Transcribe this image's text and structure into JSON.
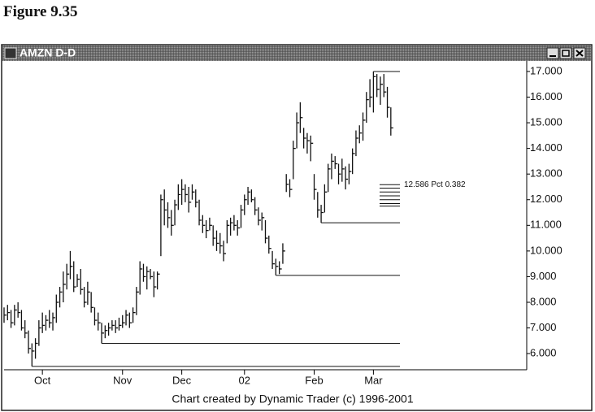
{
  "figure_caption": "Figure 9.35",
  "chart_data": {
    "type": "ohlc",
    "title": "AMZN D-D",
    "footer": "Chart created by Dynamic Trader (c) 1996-2001",
    "color": "#111111",
    "xlim": [
      0,
      150
    ],
    "xticks": [
      {
        "value": 11,
        "label": "Oct"
      },
      {
        "value": 34,
        "label": "Nov"
      },
      {
        "value": 51,
        "label": "Dec"
      },
      {
        "value": 69,
        "label": "02"
      },
      {
        "value": 89,
        "label": "Feb"
      },
      {
        "value": 106,
        "label": "Mar"
      }
    ],
    "ylim": [
      5.37,
      17.41
    ],
    "yticks": [
      {
        "value": 6,
        "label": "6.000"
      },
      {
        "value": 7,
        "label": "7.000"
      },
      {
        "value": 8,
        "label": "8.000"
      },
      {
        "value": 9,
        "label": "9.000"
      },
      {
        "value": 10,
        "label": "10.000"
      },
      {
        "value": 11,
        "label": "11.000"
      },
      {
        "value": 12,
        "label": "12.000"
      },
      {
        "value": 13,
        "label": "13.000"
      },
      {
        "value": 14,
        "label": "14.000"
      },
      {
        "value": 15,
        "label": "15.000"
      },
      {
        "value": 16,
        "label": "16.000"
      },
      {
        "value": 17,
        "label": "17.000"
      }
    ],
    "low": [
      7.2,
      7.3,
      7.0,
      7.1,
      7.4,
      6.9,
      6.6,
      6.0,
      5.5,
      5.8,
      6.3,
      6.8,
      6.9,
      7.0,
      6.9,
      7.2,
      7.8,
      8.0,
      8.5,
      8.9,
      8.4,
      8.6,
      8.3,
      7.8,
      7.9,
      7.6,
      7.1,
      6.9,
      6.4,
      6.6,
      6.7,
      6.9,
      6.8,
      6.9,
      7.0,
      7.1,
      7.0,
      7.2,
      7.5,
      8.3,
      8.8,
      8.5,
      8.9,
      8.2,
      8.5,
      9.8,
      11.0,
      10.9,
      10.6,
      11.0,
      11.6,
      11.8,
      11.9,
      11.5,
      12.0,
      11.7,
      11.0,
      10.7,
      10.5,
      10.8,
      10.2,
      10.0,
      9.9,
      9.6,
      10.3,
      10.6,
      10.8,
      10.6,
      10.9,
      11.4,
      11.8,
      11.9,
      11.4,
      11.0,
      10.8,
      10.3,
      9.9,
      9.3,
      9.05,
      9.1,
      9.5,
      12.3,
      12.1,
      12.8,
      14.0,
      14.6,
      14.0,
      13.8,
      13.5,
      12.0,
      11.3,
      11.1,
      11.5,
      12.3,
      12.8,
      13.2,
      12.6,
      12.7,
      12.4,
      12.6,
      13.0,
      13.7,
      14.2,
      14.3,
      15.0,
      15.6,
      15.4,
      16.0,
      15.7,
      16.0,
      15.2,
      14.5
    ],
    "high": [
      7.8,
      7.9,
      7.7,
      7.9,
      8.0,
      7.7,
      7.3,
      6.9,
      6.4,
      6.6,
      7.3,
      7.6,
      7.5,
      7.7,
      7.6,
      8.3,
      8.6,
      9.2,
      9.5,
      10.0,
      9.6,
      9.1,
      9.3,
      8.6,
      8.8,
      8.4,
      7.8,
      7.6,
      7.2,
      7.1,
      7.2,
      7.3,
      7.3,
      7.4,
      7.5,
      7.7,
      7.6,
      7.8,
      8.6,
      9.6,
      9.5,
      9.4,
      9.3,
      9.2,
      9.2,
      12.2,
      12.4,
      11.9,
      11.6,
      12.0,
      12.6,
      12.8,
      12.6,
      12.5,
      12.6,
      12.4,
      12.0,
      11.4,
      11.2,
      11.3,
      11.0,
      10.8,
      10.7,
      10.4,
      11.2,
      11.3,
      11.4,
      11.2,
      11.8,
      12.2,
      12.5,
      12.4,
      12.1,
      11.7,
      11.5,
      11.2,
      10.6,
      10.0,
      9.7,
      9.6,
      10.3,
      13.0,
      12.8,
      14.3,
      15.4,
      15.8,
      14.8,
      14.6,
      14.5,
      13.0,
      12.3,
      11.8,
      12.6,
      13.4,
      13.8,
      13.7,
      13.4,
      13.6,
      13.3,
      13.4,
      14.0,
      14.7,
      14.9,
      15.4,
      16.2,
      16.7,
      17.0,
      16.9,
      16.8,
      16.9,
      16.4,
      15.6
    ],
    "close": [
      7.5,
      7.6,
      7.2,
      7.7,
      7.6,
      7.0,
      6.8,
      6.2,
      6.1,
      6.4,
      7.0,
      7.1,
      7.3,
      7.2,
      7.4,
      8.0,
      8.4,
      8.7,
      9.1,
      9.4,
      8.6,
      8.9,
      8.5,
      8.0,
      8.4,
      7.8,
      7.3,
      7.2,
      6.8,
      6.9,
      7.0,
      7.1,
      7.0,
      7.1,
      7.2,
      7.5,
      7.2,
      7.6,
      8.4,
      9.3,
      9.0,
      9.2,
      9.0,
      8.6,
      9.1,
      12.0,
      11.6,
      11.3,
      11.0,
      11.8,
      12.2,
      12.4,
      12.2,
      11.9,
      12.3,
      11.9,
      11.2,
      11.0,
      10.8,
      11.0,
      10.5,
      10.3,
      10.2,
      9.9,
      11.0,
      11.1,
      11.0,
      10.9,
      11.6,
      12.0,
      12.3,
      12.0,
      11.6,
      11.2,
      11.3,
      10.5,
      10.1,
      9.5,
      9.4,
      9.3,
      10.0,
      12.6,
      12.4,
      14.0,
      15.0,
      15.2,
      14.4,
      14.3,
      14.2,
      12.4,
      11.6,
      11.5,
      12.3,
      13.2,
      13.5,
      13.4,
      13.0,
      13.2,
      12.8,
      13.1,
      13.8,
      14.4,
      14.6,
      15.1,
      15.9,
      16.0,
      16.8,
      16.3,
      16.5,
      16.2,
      15.6,
      14.8
    ],
    "support_lines": [
      {
        "from": 8,
        "level": 5.5
      },
      {
        "from": 28,
        "level": 6.4
      },
      {
        "from": 78,
        "level": 9.05
      },
      {
        "from": 91,
        "level": 11.1
      },
      {
        "from": 106,
        "level": 17.0
      }
    ],
    "cluster_levels": [
      12.586,
      12.45,
      12.3,
      12.15,
      12.0,
      11.85,
      11.75
    ],
    "cluster_label": "12.586 Pct 0.382"
  }
}
